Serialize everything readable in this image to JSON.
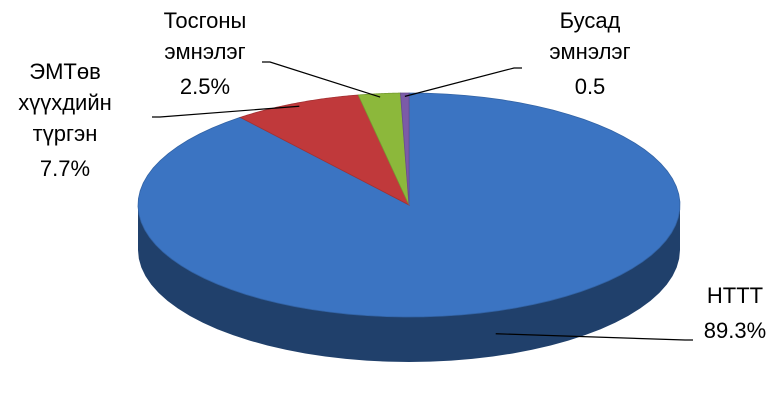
{
  "chart_data": {
    "type": "pie3d",
    "categories": [
      "НТТТ",
      "ЭМТөв хүүхдийн түргэн",
      "Тосгоны эмнэлэг",
      "Бусад эмнэлэг"
    ],
    "values": [
      89.3,
      7.7,
      2.5,
      0.5
    ],
    "value_labels": [
      "89.3%",
      "7.7%",
      "2.5%",
      "0.5"
    ],
    "colors": [
      "#3b74c2",
      "#c0393b",
      "#8cb83b",
      "#7b5ba8"
    ]
  }
}
